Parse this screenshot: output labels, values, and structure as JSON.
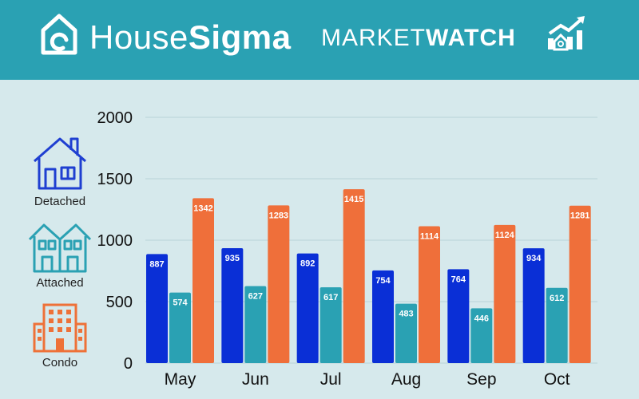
{
  "header": {
    "brand_regular": "House",
    "brand_bold": "Sigma",
    "market_regular": "MARKET",
    "market_bold": "WATCH"
  },
  "legend": [
    {
      "label": "Detached",
      "icon": "detached-house-icon",
      "color": "#1f3fd1"
    },
    {
      "label": "Attached",
      "icon": "attached-house-icon",
      "color": "#2aa1b3"
    },
    {
      "label": "Condo",
      "icon": "condo-building-icon",
      "color": "#ee7138"
    }
  ],
  "chart_data": {
    "type": "bar",
    "categories": [
      "May",
      "Jun",
      "Jul",
      "Aug",
      "Sep",
      "Oct"
    ],
    "series": [
      {
        "name": "Detached",
        "color": "#0a2fd6",
        "values": [
          887,
          935,
          892,
          754,
          764,
          934
        ]
      },
      {
        "name": "Attached",
        "color": "#2aa1b3",
        "values": [
          574,
          627,
          617,
          483,
          446,
          612
        ]
      },
      {
        "name": "Condo",
        "color": "#ef6f3a",
        "values": [
          1342,
          1283,
          1415,
          1114,
          1124,
          1281
        ]
      }
    ],
    "ylim": [
      0,
      2000
    ],
    "yticks": [
      0,
      500,
      1000,
      1500,
      2000
    ],
    "grid": true,
    "data_labels": true
  }
}
